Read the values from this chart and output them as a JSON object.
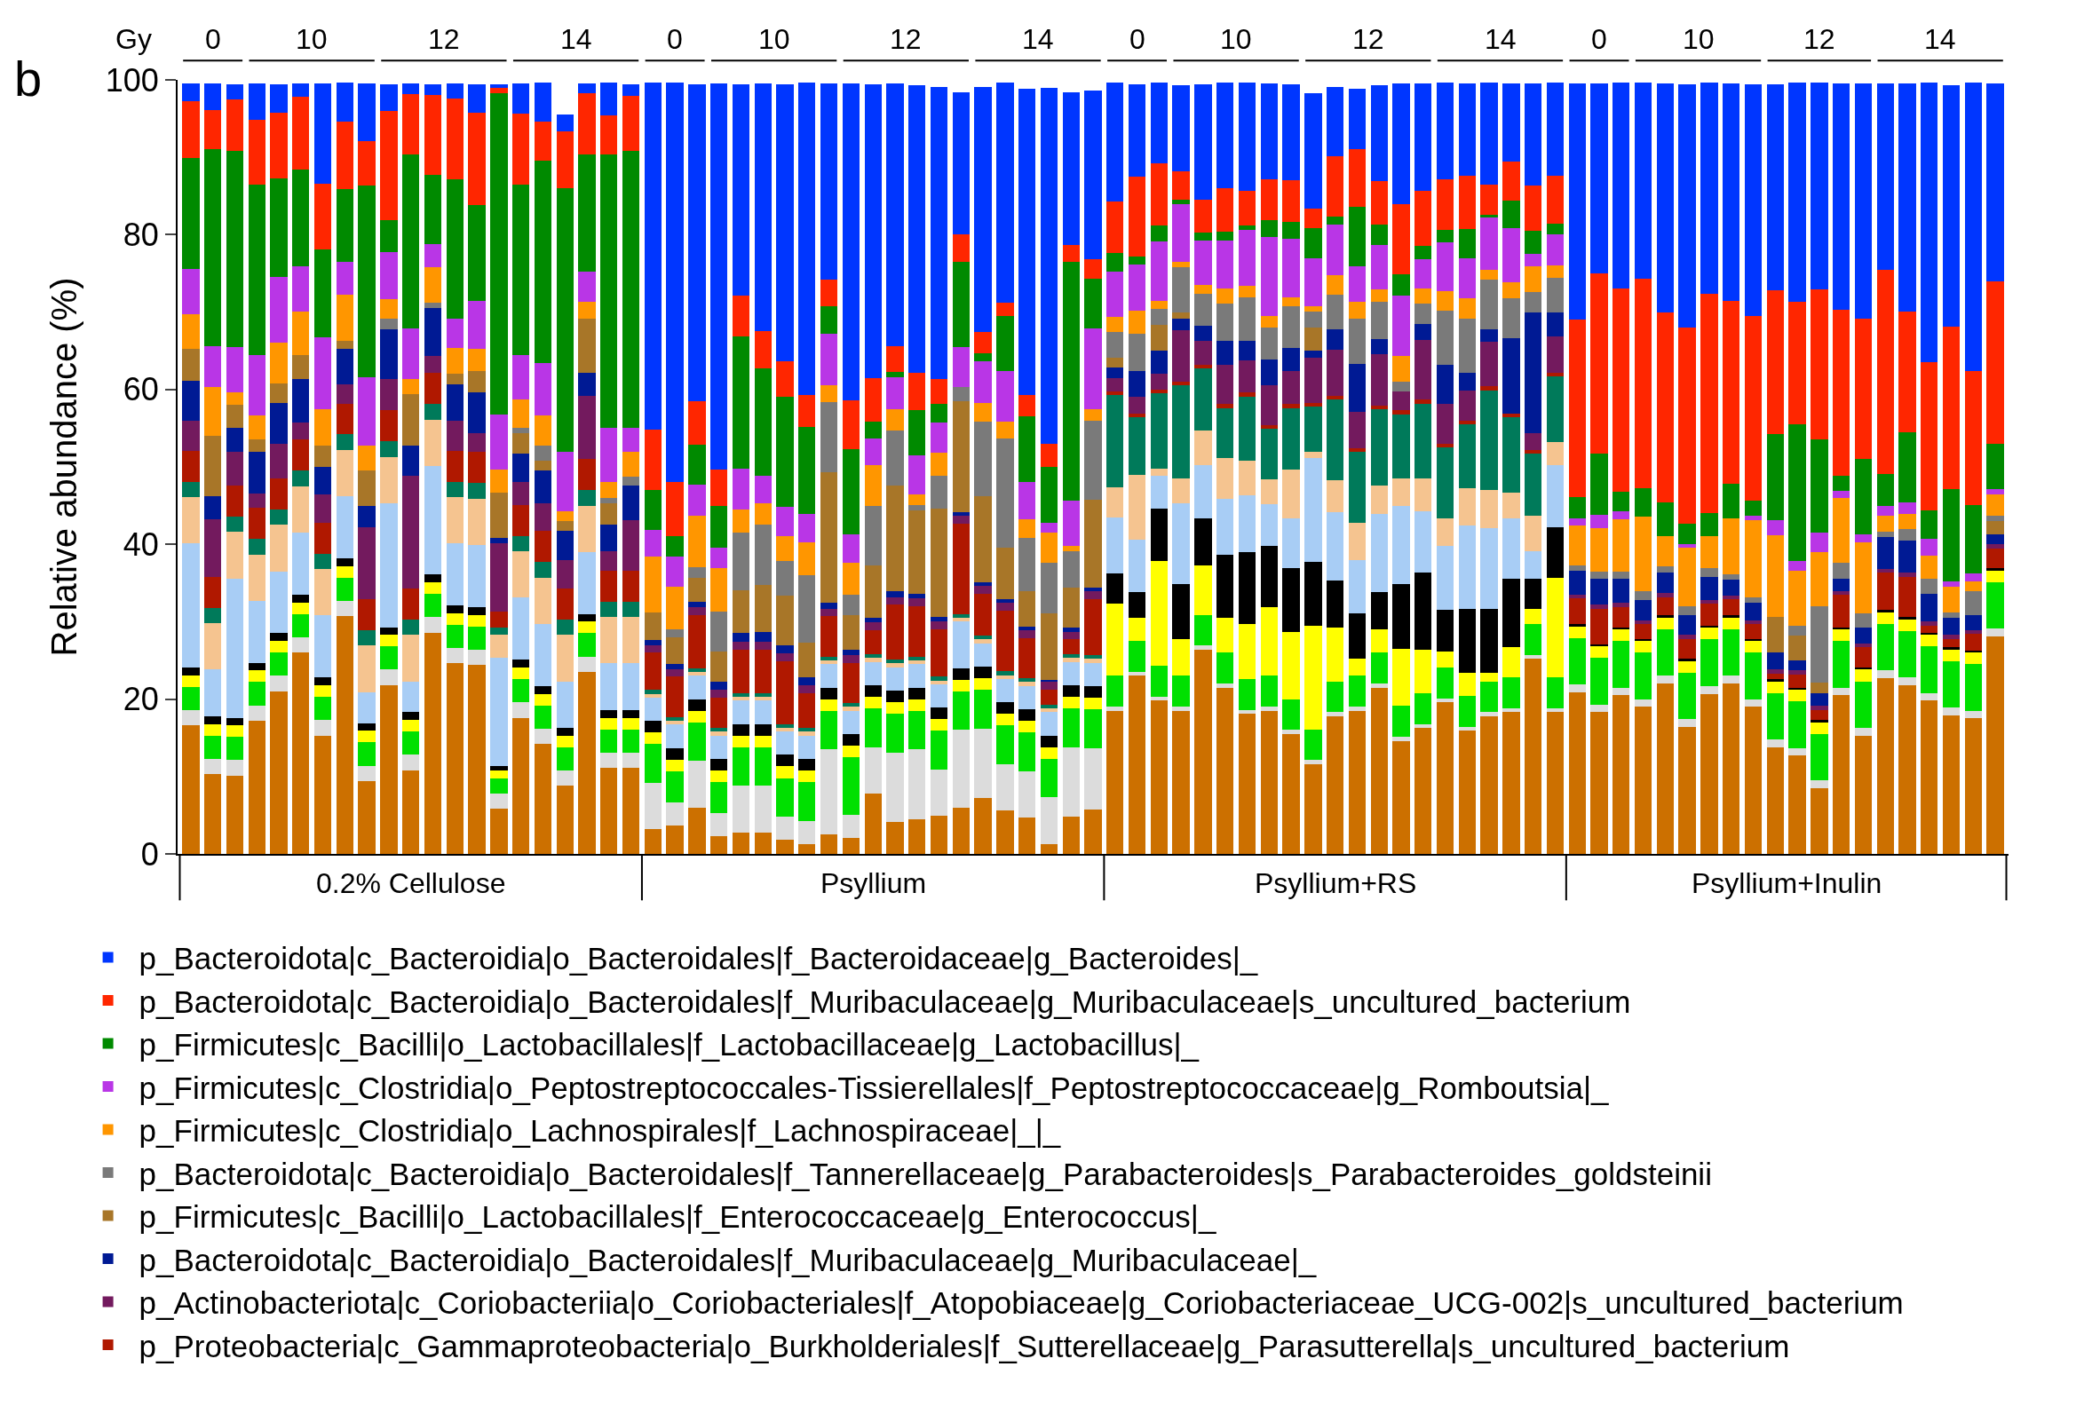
{
  "chart_data": {
    "type": "bar",
    "stacked": true,
    "ylabel": "Relative abundance (%)",
    "ylim": [
      0,
      100
    ],
    "yticks": [
      0,
      20,
      40,
      60,
      80,
      100
    ],
    "tick_labels": "y",
    "legend": "bottom",
    "categories": [
      null,
      null,
      null,
      null,
      null,
      null,
      null,
      null,
      null,
      null,
      null,
      null,
      null,
      null,
      null,
      null,
      null,
      null,
      null,
      null,
      null,
      null,
      null,
      null,
      null,
      null,
      null,
      null,
      null,
      null,
      null,
      null,
      null,
      null,
      null,
      null,
      null,
      null,
      null,
      null,
      null,
      null,
      null,
      null,
      null,
      null,
      null,
      null,
      null,
      null,
      null,
      null,
      null,
      null,
      null,
      null,
      null,
      null,
      null,
      null,
      null,
      null,
      null,
      null,
      null,
      null,
      null,
      null,
      null,
      null,
      null,
      null,
      null,
      null,
      null,
      null,
      null,
      null,
      null,
      null,
      null,
      null,
      null
    ],
    "annotations": [
      "b",
      "Gy",
      "0",
      "10",
      "12",
      "14",
      "0",
      "10",
      "12",
      "14",
      "0",
      "10",
      "12",
      "14",
      "0",
      "10",
      "12",
      "14",
      "0.2% Cellulose",
      "Psyllium",
      "Psyllium+RS",
      "Psyllium+Inulin"
    ],
    "series": [
      {
        "color": "#cc7000",
        "values": [
          16.6,
          10.3,
          10.1,
          17.2,
          21.0,
          26.0,
          15.3,
          30.7,
          9.4,
          21.8,
          10.8,
          28.6,
          24.6,
          24.4,
          5.8,
          17.6,
          14.2,
          8.8,
          23.5,
          11.1,
          11.1,
          3.2,
          3.7,
          6.0,
          2.3,
          2.8,
          2.8,
          1.8,
          1.3,
          2.5,
          2.1,
          7.8,
          4.1,
          4.5,
          4.9,
          6.0,
          7.2,
          5.6,
          4.7,
          1.3,
          4.8,
          5.7,
          18.5,
          23.0,
          19.8,
          18.5,
          26.4,
          21.5,
          18.1,
          18.5,
          15.5,
          11.6,
          17.8,
          18.5,
          21.5,
          14.6,
          16.3,
          19.6,
          15.9,
          17.8,
          18.3,
          25.2,
          18.3,
          20.9,
          18.3,
          20.5,
          19.0,
          22.0,
          16.4,
          20.7,
          22.0,
          19.0,
          13.8,
          12.7,
          8.5,
          20.5,
          15.3,
          22.7,
          21.8,
          19.8,
          17.9,
          17.5,
          28.1
        ]
      },
      {
        "color": "#dcdcdc",
        "values": [
          2,
          2,
          2,
          2,
          2,
          2,
          2,
          2,
          2,
          2,
          2,
          2,
          2,
          2,
          2,
          2,
          2,
          2,
          2,
          2,
          2,
          6,
          3,
          6,
          3,
          6,
          6,
          3,
          3,
          11,
          3,
          6,
          9,
          9,
          6,
          10,
          9,
          6,
          6,
          6,
          9,
          8,
          0.5,
          0.5,
          0.5,
          0.5,
          0.5,
          0.5,
          0.5,
          0.5,
          0.5,
          0.5,
          0.5,
          0.5,
          0.5,
          0.5,
          0.5,
          0.5,
          0.5,
          0.5,
          0.5,
          0.5,
          0.5,
          1,
          1,
          1,
          1,
          1,
          1,
          1,
          1,
          1,
          1,
          1,
          1,
          1,
          1,
          1,
          1,
          1,
          1,
          1,
          1
        ]
      },
      {
        "color": "#00e000",
        "values": [
          3,
          3,
          3,
          3,
          3,
          3,
          3,
          3,
          3,
          3,
          3,
          3,
          3,
          3,
          2,
          3,
          3,
          3,
          3,
          3,
          3,
          5,
          4,
          5,
          4,
          5,
          5,
          5,
          5,
          5,
          7.4,
          5,
          5,
          5,
          5,
          5,
          5,
          5,
          5,
          5,
          5,
          5,
          4,
          4,
          4,
          4,
          4,
          4,
          4,
          4,
          4,
          4,
          4,
          4,
          4,
          4,
          4,
          4,
          4,
          4,
          4,
          4,
          4,
          6,
          6,
          6,
          6,
          6,
          6,
          6,
          6,
          6,
          6,
          6,
          6,
          6,
          6,
          6,
          6,
          6,
          6,
          6,
          6
        ]
      },
      {
        "color": "#ffff00",
        "values": [
          1.5,
          1.5,
          1.5,
          1.5,
          1.5,
          1.5,
          1.5,
          1.5,
          1.5,
          1.5,
          1.5,
          1.5,
          1.5,
          1.5,
          1,
          1.5,
          1.5,
          1.5,
          1.5,
          1.5,
          1.5,
          1.5,
          1.5,
          1.5,
          1.5,
          1.5,
          1.5,
          1.5,
          1.5,
          1.5,
          1.5,
          1.5,
          1.5,
          1.5,
          1.5,
          1.5,
          1.5,
          1.5,
          1.5,
          1.5,
          1.5,
          1.5,
          9.3,
          3.0,
          13.6,
          4.7,
          6.4,
          4.5,
          7.1,
          8.9,
          8.7,
          13.4,
          6.9,
          2.2,
          3.0,
          7.4,
          5.6,
          2.1,
          3.0,
          1.1,
          3.9,
          1.9,
          12.9,
          1.5,
          1.5,
          1.5,
          1.5,
          1.5,
          1.5,
          1.5,
          1.5,
          1.5,
          1.5,
          1.5,
          1.5,
          1.5,
          1.5,
          1.5,
          1.5,
          1.5,
          1.5,
          1.5,
          1.5
        ]
      },
      {
        "color": "#000000",
        "values": [
          1,
          1,
          1,
          1,
          1,
          1,
          1,
          1,
          1,
          1,
          1,
          1,
          1,
          1,
          0.5,
          1,
          1,
          1,
          1,
          1,
          1,
          1.5,
          1.5,
          1.5,
          1.5,
          1.5,
          1.5,
          1.5,
          1.5,
          1.5,
          1.5,
          1.5,
          1.5,
          1.5,
          1.5,
          1.5,
          1.5,
          1.5,
          1.5,
          1.5,
          1.5,
          1.5,
          3.9,
          3.3,
          6.7,
          7.2,
          6.1,
          8.2,
          9.3,
          7.9,
          8.2,
          8.2,
          6.1,
          5.9,
          4.8,
          8.4,
          10.0,
          5.3,
          8.2,
          8.3,
          8.9,
          3.9,
          6.5,
          0.3,
          0.3,
          0.3,
          0.3,
          0.3,
          0.3,
          0.3,
          0.3,
          0.3,
          0.3,
          0.3,
          0.3,
          0.3,
          0.3,
          0.3,
          0.3,
          0.3,
          0.3,
          0.3,
          0.3
        ]
      },
      {
        "color": "#a8cdf5",
        "values": [
          16,
          6,
          18,
          8,
          8,
          8,
          8,
          8,
          4,
          16,
          4,
          14,
          8,
          8,
          14,
          8,
          8,
          6,
          8,
          6,
          6,
          3,
          3,
          3,
          3,
          3,
          3,
          3,
          3,
          3,
          3,
          3,
          3,
          3,
          3,
          6,
          3,
          3,
          3,
          3,
          3,
          3,
          7.3,
          6.8,
          4.2,
          10.4,
          6.8,
          7.2,
          7.3,
          5.4,
          6.5,
          13.4,
          8.8,
          6.9,
          10.1,
          10.0,
          7.9,
          8.3,
          10.8,
          10.4,
          7.8,
          3.6,
          8.0,
          0,
          0,
          0,
          0,
          0,
          0,
          0,
          0,
          0,
          0,
          0,
          0,
          0,
          0,
          0,
          0,
          0,
          0,
          0,
          0
        ]
      },
      {
        "color": "#f5c490",
        "values": [
          6,
          6,
          6,
          6,
          6,
          6,
          6,
          6,
          6,
          6,
          6,
          6,
          6,
          6,
          3,
          6,
          6,
          6,
          6,
          6,
          6,
          0.5,
          0.5,
          0.5,
          0.5,
          0.5,
          0.5,
          0.5,
          0.5,
          0.5,
          0.5,
          0.5,
          0.5,
          0.5,
          0.5,
          0.5,
          0.5,
          0.5,
          0.5,
          0.5,
          0.5,
          0.5,
          3.9,
          8.4,
          1.0,
          3.2,
          4.5,
          5.2,
          4.5,
          3.2,
          6.3,
          0.9,
          4.2,
          4.8,
          3.7,
          3.6,
          4.2,
          3.6,
          4.8,
          4.9,
          3.3,
          4.6,
          3.0,
          0,
          0,
          0,
          0,
          0,
          0,
          0,
          0,
          0,
          0,
          0,
          0,
          0,
          0,
          0,
          0,
          0,
          0,
          0,
          0
        ]
      },
      {
        "color": "#007a5a",
        "values": [
          2,
          2,
          2,
          2,
          2,
          2,
          2,
          2,
          2,
          2,
          2,
          2,
          2,
          2,
          1,
          2,
          2,
          2,
          2,
          2,
          2,
          0.5,
          0.5,
          0.5,
          0.5,
          0.5,
          0.5,
          0.5,
          0.5,
          0.5,
          0.5,
          0.5,
          0.5,
          0.5,
          0.5,
          0.5,
          0.5,
          0.5,
          0.5,
          0.5,
          0.5,
          0.5,
          11.9,
          7.4,
          9.7,
          12.0,
          8.0,
          6.5,
          8.3,
          6.5,
          7.9,
          5.8,
          10.4,
          9.1,
          9.8,
          8.3,
          9.7,
          9.1,
          8.3,
          12.9,
          9.7,
          8.0,
          8.5,
          0,
          0,
          0,
          0,
          0,
          0,
          0,
          0,
          0,
          0,
          0,
          0,
          0,
          0,
          0,
          0,
          0,
          0,
          0,
          0
        ]
      },
      {
        "name": "p_Proteobacteria|c_Gammaproteobacteria|o_Burkholderiales|f_Sutterellaceae|g_Parasutterella|s_uncultured_bacterium",
        "color": "#b01800",
        "values": [
          4,
          4,
          4,
          4,
          4,
          4,
          4,
          4,
          4,
          4,
          4,
          4,
          4,
          4,
          2,
          4,
          4,
          4,
          4,
          4,
          4,
          4.8,
          5.2,
          6.9,
          3.9,
          5.6,
          5.6,
          8.1,
          4.5,
          5.2,
          5.2,
          3.1,
          7.1,
          6.5,
          6.1,
          11.7,
          5.4,
          7.8,
          5.2,
          1.9,
          1.9,
          7.2,
          0.5,
          0.5,
          0.5,
          0.5,
          0.5,
          0.5,
          0.5,
          0.5,
          0.5,
          0.5,
          0.5,
          0.5,
          0.5,
          0.5,
          0.5,
          0.5,
          0.5,
          0.5,
          0.5,
          0.5,
          0.5,
          3.3,
          4.6,
          2.6,
          1.9,
          2.4,
          2.6,
          2.8,
          2.1,
          1.9,
          0.7,
          1.7,
          1.3,
          4.2,
          2.6,
          4.8,
          5.2,
          0.9,
          1.1,
          2.1,
          2.6
        ]
      },
      {
        "name": "p_Actinobacteriota|c_Coriobacteriia|o_Coriobacteriales|f_Atopobiaceae|g_Coriobacteriaceae_UCG-002|s_uncultured_bacterium",
        "color": "#731a5e",
        "values": [
          3.9,
          7.4,
          4.3,
          1.9,
          4.5,
          2.2,
          3.7,
          2.5,
          9.3,
          4.0,
          14.5,
          2.2,
          3.9,
          2.5,
          8.8,
          3.0,
          3.6,
          3.7,
          8.2,
          2.5,
          6.5,
          1,
          1,
          1,
          1,
          1,
          1,
          1,
          1,
          1,
          1,
          1,
          1,
          1,
          1,
          1,
          1,
          1,
          1,
          1,
          1,
          1,
          1.7,
          2.2,
          2.0,
          6.7,
          3.1,
          5.1,
          4.2,
          5.2,
          4.3,
          5.8,
          5.9,
          4.7,
          6.7,
          2.4,
          7.7,
          5.1,
          3.9,
          5.8,
          0,
          2.2,
          4.7,
          0.5,
          0.5,
          0.5,
          0.5,
          0.5,
          0.5,
          0.5,
          0.5,
          0.5,
          0.5,
          0.5,
          0.5,
          0.5,
          0.5,
          0.5,
          0.5,
          0.5,
          0.5,
          0.5,
          0.5
        ]
      },
      {
        "name": "p_Bacteroidota|c_Bacteroidia|o_Bacteroidales|f_Muribaculaceae|g_Muribaculaceae|_",
        "color": "#001a94",
        "values": [
          5.1,
          3.0,
          3.1,
          5.4,
          5.3,
          5.7,
          3.5,
          4.5,
          2.8,
          6.5,
          3.9,
          6.2,
          4.7,
          5.2,
          0.7,
          3.6,
          4.2,
          3.7,
          3.0,
          3.5,
          4.5,
          0.6,
          0.6,
          0.7,
          1.1,
          1.1,
          1.3,
          1.1,
          1.0,
          0.7,
          0.7,
          0.6,
          0.7,
          0.6,
          0.6,
          0.5,
          0.5,
          0.5,
          0.5,
          0.3,
          0.5,
          0.5,
          1.3,
          3.3,
          3.0,
          1.5,
          1.9,
          3.1,
          2.5,
          3.3,
          3.0,
          0.9,
          2.7,
          6.2,
          1.9,
          0,
          2.1,
          5.1,
          2.2,
          1.6,
          9.7,
          15.6,
          3.0,
          3.1,
          3.4,
          3.2,
          2.6,
          2.7,
          2.6,
          3.0,
          2.0,
          2.2,
          2.2,
          1.3,
          1.7,
          1.6,
          2.0,
          4.1,
          4.2,
          3.6,
          2.2,
          2.0,
          1.3
        ]
      },
      {
        "name": "p_Firmicutes|c_Bacilli|o_Lactobacillales|f_Enterococcaceae|g_Enterococcus|_",
        "color": "#a87628",
        "values": [
          4.1,
          7.8,
          3.0,
          1.6,
          2.5,
          3.0,
          2.8,
          1.1,
          4.5,
          0,
          6.7,
          0,
          1.3,
          2.8,
          5.9,
          2.7,
          1.3,
          1.3,
          6.9,
          2.7,
          0,
          3.6,
          3.5,
          3.1,
          3.9,
          5.6,
          6.1,
          6.4,
          4.5,
          16.9,
          4.5,
          6.8,
          13.7,
          10.8,
          14.0,
          14.3,
          11.1,
          6.7,
          4.5,
          8.6,
          5.2,
          11.4,
          1.3,
          0,
          3.4,
          0.7,
          0,
          0,
          0,
          0,
          0,
          3.0,
          0,
          0,
          0,
          0,
          0,
          0,
          0,
          0,
          0,
          0,
          0,
          0,
          0,
          0,
          0,
          0,
          0,
          0,
          0,
          0,
          4.6,
          3.2,
          1.3,
          0,
          0,
          0,
          0,
          0,
          0,
          0,
          1.7
        ]
      },
      {
        "name": "p_Bacteroidota|c_Bacteroidia|o_Bacteroidales|f_Tannerellaceae|g_Parabacteroides|s_Parabacteroides_goldsteinii",
        "color": "#7a7a7a",
        "values": [
          0,
          0,
          0,
          0,
          0,
          0,
          0,
          0,
          0,
          1.3,
          0,
          0.7,
          0,
          0,
          0,
          0.6,
          1.9,
          0,
          0,
          0.7,
          1.1,
          0,
          1.0,
          1.3,
          5.1,
          7.4,
          7.8,
          4.4,
          8.7,
          9.1,
          2.6,
          7.7,
          7.1,
          0.7,
          4.2,
          1.8,
          9.7,
          14.1,
          6.9,
          6.5,
          4.7,
          10.2,
          3.3,
          4.8,
          2.0,
          5.9,
          4.2,
          4.8,
          5.6,
          4.1,
          5.4,
          2.1,
          4.5,
          5.9,
          4.8,
          1.3,
          2.6,
          7.0,
          7.1,
          6.4,
          5.2,
          2.6,
          4.5,
          0.7,
          0.9,
          0.9,
          1.1,
          0.7,
          1.1,
          1.1,
          0.7,
          0.7,
          0,
          1.3,
          9.9,
          2.0,
          1.9,
          0.7,
          1.5,
          1.9,
          0.7,
          3.0,
          0.7
        ]
      },
      {
        "name": "p_Firmicutes|c_Clostridia|o_Lachnospirales|f_Lachnospiraceae|_|_",
        "color": "#ff9600",
        "values": [
          4.5,
          6.3,
          1.6,
          3.0,
          5.3,
          5.7,
          4.6,
          5.9,
          3.3,
          2.6,
          2.0,
          4.6,
          3.4,
          2.8,
          3.0,
          3.7,
          3.9,
          1.3,
          2.2,
          2.0,
          3.2,
          7.2,
          5.5,
          6.7,
          5.6,
          3.0,
          2.7,
          3.3,
          4.2,
          2.1,
          4.1,
          5.2,
          2.7,
          1.3,
          3.0,
          0,
          2.4,
          2.2,
          2.4,
          3.9,
          0.7,
          1.5,
          2.0,
          3.0,
          1.1,
          0.7,
          1.1,
          1.9,
          1.5,
          1.5,
          1.1,
          0.7,
          2.5,
          2.1,
          1.6,
          3.3,
          2.0,
          2.5,
          2.6,
          1.3,
          2.0,
          3.3,
          1.6,
          5.1,
          5.6,
          6.7,
          9.7,
          4.0,
          7.6,
          4.1,
          7.2,
          10.0,
          10.6,
          7.1,
          7.0,
          8.4,
          9.1,
          2.1,
          1.9,
          3.0,
          3.3,
          1.3,
          2.7
        ]
      },
      {
        "name": "p_Firmicutes|c_Clostridia|o_Peptostreptococcales-Tissierellales|f_Peptostreptococcaceae|g_Romboutsia|_",
        "color": "#b936e6",
        "values": [
          5.9,
          5.3,
          5.9,
          7.8,
          8.4,
          5.8,
          9.4,
          4.3,
          8.8,
          6.1,
          6.5,
          3.0,
          3.7,
          6.3,
          7.1,
          5.7,
          6.8,
          7.7,
          3.9,
          7.1,
          3.1,
          3.5,
          3.9,
          4.0,
          2.7,
          5.3,
          3.6,
          3.7,
          3.7,
          6.7,
          3.7,
          3.5,
          4.2,
          5.1,
          3.9,
          5.2,
          5.3,
          6.5,
          4.8,
          1.3,
          5.9,
          10.4,
          5.8,
          5.9,
          7.6,
          7.4,
          5.7,
          6.3,
          7.2,
          10.2,
          7.6,
          6.2,
          6.5,
          4.6,
          5.8,
          7.8,
          3.7,
          6.3,
          5.2,
          6.7,
          7.1,
          1.6,
          4.1,
          0.9,
          1.7,
          1.1,
          0,
          0,
          0.4,
          0,
          0,
          0.6,
          1.9,
          1.3,
          2.5,
          0.9,
          1.1,
          1.3,
          1.5,
          2.2,
          0.7,
          1.0,
          0.7
        ]
      },
      {
        "name": "p_Firmicutes|c_Bacilli|o_Lactobacillales|f_Lactobacillaceae|g_Lactobacillus|_",
        "color": "#008a00",
        "values": [
          14.3,
          25.5,
          25.3,
          22.1,
          12.8,
          12.5,
          11.3,
          9.4,
          24.7,
          4.1,
          22.5,
          8.9,
          18.0,
          12.3,
          41.5,
          22.1,
          26.2,
          34.0,
          15.2,
          35.3,
          35.8,
          5.1,
          2.6,
          5.2,
          5.4,
          17.1,
          13.8,
          14.3,
          11.3,
          3.6,
          11.0,
          2.2,
          0.7,
          5.8,
          2.5,
          11.0,
          1.1,
          7.1,
          8.5,
          7.2,
          30.8,
          6.4,
          2.4,
          1.1,
          2.1,
          0.6,
          1.1,
          1.1,
          0.6,
          2.2,
          2.2,
          3.9,
          1.0,
          7.7,
          2.6,
          2.8,
          1.7,
          1.6,
          3.7,
          0.4,
          3.5,
          3.0,
          1.3,
          2.8,
          7.9,
          2.5,
          3.7,
          4.3,
          2.7,
          3.0,
          4.5,
          2.0,
          11.1,
          17.6,
          12.1,
          1.9,
          9.7,
          4.1,
          9.1,
          3.7,
          11.9,
          8.9,
          5.9
        ]
      },
      {
        "name": "p_Bacteroidota|c_Bacteroidia|o_Bacteroidales|f_Muribaculaceae|g_Muribaculaceae|s_uncultured_bacterium",
        "color": "#ff2600",
        "values": [
          7.4,
          5.0,
          6.7,
          8.3,
          8.5,
          9.4,
          8.5,
          8.7,
          5.8,
          14.1,
          7.8,
          10.4,
          10.5,
          12.0,
          0.7,
          9.1,
          5.0,
          7.4,
          7.9,
          5.0,
          7.1,
          7.8,
          7.1,
          5.6,
          4.7,
          5.2,
          4.8,
          4.6,
          4.1,
          3.4,
          6.3,
          5.6,
          3.3,
          4.8,
          3.2,
          3.6,
          2.7,
          1.7,
          2.8,
          3.0,
          2.2,
          2.5,
          6.7,
          10.3,
          8.0,
          3.7,
          4.2,
          5.6,
          4.5,
          5.2,
          5.3,
          2.5,
          7.8,
          7.4,
          5.6,
          9.1,
          7.2,
          6.5,
          6.9,
          3.9,
          5.0,
          5.8,
          6.2,
          22.9,
          23.3,
          26.2,
          27.0,
          24.5,
          25.3,
          28.4,
          23.6,
          23.8,
          18.6,
          15.8,
          19.3,
          21.5,
          18.2,
          26.4,
          15.6,
          19.1,
          21.0,
          17.3,
          21.0
        ]
      },
      {
        "name": "p_Bacteroidota|c_Bacteroidia|o_Bacteroidales|f_Bacteroidaceae|g_Bacteroides|_",
        "color": "#0036ff",
        "values": [
          2.2,
          3.4,
          1.9,
          4.7,
          3.6,
          1.7,
          12.9,
          5.0,
          7.4,
          3.4,
          1.3,
          1.3,
          1.9,
          3.6,
          0.4,
          3.9,
          5.0,
          2.1,
          1.2,
          4.3,
          1.5,
          44.8,
          51.5,
          40.9,
          49.8,
          27.3,
          32.0,
          35.7,
          40.3,
          25.3,
          40.9,
          37.9,
          33.9,
          37.2,
          37.7,
          18.3,
          31.7,
          28.4,
          39.5,
          46.0,
          19.7,
          21.8,
          15.3,
          11.9,
          10.4,
          11.1,
          14.9,
          13.6,
          14.0,
          12.4,
          12.4,
          14.9,
          9.0,
          7.9,
          12.4,
          15.5,
          13.8,
          12.5,
          11.9,
          13.1,
          10.1,
          13.2,
          12.0,
          30.5,
          24.5,
          26.6,
          25.3,
          29.6,
          31.4,
          27.2,
          28.1,
          29.9,
          26.6,
          28.3,
          26.8,
          29.2,
          30.3,
          24.0,
          29.4,
          36.1,
          31.2,
          37.2,
          25.5
        ]
      }
    ]
  }
}
